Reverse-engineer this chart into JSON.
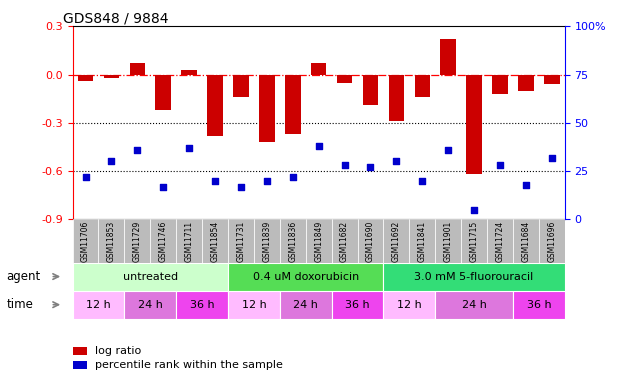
{
  "title": "GDS848 / 9884",
  "samples": [
    "GSM11706",
    "GSM11853",
    "GSM11729",
    "GSM11746",
    "GSM11711",
    "GSM11854",
    "GSM11731",
    "GSM11839",
    "GSM11836",
    "GSM11849",
    "GSM11682",
    "GSM11690",
    "GSM11692",
    "GSM11841",
    "GSM11901",
    "GSM11715",
    "GSM11724",
    "GSM11684",
    "GSM11696"
  ],
  "log_ratio": [
    -0.04,
    -0.02,
    0.07,
    -0.22,
    0.03,
    -0.38,
    -0.14,
    -0.42,
    -0.37,
    0.07,
    -0.05,
    -0.19,
    -0.29,
    -0.14,
    0.22,
    -0.62,
    -0.12,
    -0.1,
    -0.06
  ],
  "percentile": [
    22,
    30,
    36,
    17,
    37,
    20,
    17,
    20,
    22,
    38,
    28,
    27,
    30,
    20,
    36,
    5,
    28,
    18,
    32
  ],
  "agent_groups": [
    {
      "label": "untreated",
      "color": "#ccffcc",
      "start": 0,
      "end": 6
    },
    {
      "label": "0.4 uM doxorubicin",
      "color": "#55dd55",
      "start": 6,
      "end": 12
    },
    {
      "label": "3.0 mM 5-fluorouracil",
      "color": "#33dd77",
      "start": 12,
      "end": 19
    }
  ],
  "time_groups": [
    {
      "label": "12 h",
      "color": "#ffbbff",
      "start": 0,
      "end": 2
    },
    {
      "label": "24 h",
      "color": "#dd77dd",
      "start": 2,
      "end": 4
    },
    {
      "label": "36 h",
      "color": "#ee44ee",
      "start": 4,
      "end": 6
    },
    {
      "label": "12 h",
      "color": "#ffbbff",
      "start": 6,
      "end": 8
    },
    {
      "label": "24 h",
      "color": "#dd77dd",
      "start": 8,
      "end": 10
    },
    {
      "label": "36 h",
      "color": "#ee44ee",
      "start": 10,
      "end": 12
    },
    {
      "label": "12 h",
      "color": "#ffbbff",
      "start": 12,
      "end": 14
    },
    {
      "label": "24 h",
      "color": "#dd77dd",
      "start": 14,
      "end": 17
    },
    {
      "label": "36 h",
      "color": "#ee44ee",
      "start": 17,
      "end": 19
    }
  ],
  "bar_color": "#cc0000",
  "scatter_color": "#0000cc",
  "ylim_left": [
    -0.9,
    0.3
  ],
  "ylim_right": [
    0,
    100
  ],
  "yticks_left": [
    -0.9,
    -0.6,
    -0.3,
    0.0,
    0.3
  ],
  "yticks_right": [
    0,
    25,
    50,
    75,
    100
  ],
  "hline_dashed": 0.0,
  "hlines_dotted": [
    -0.3,
    -0.6
  ],
  "legend_items": [
    {
      "label": "log ratio",
      "color": "#cc0000"
    },
    {
      "label": "percentile rank within the sample",
      "color": "#0000cc"
    }
  ],
  "sample_bg_color": "#bbbbbb",
  "agent_label_color": "#333333",
  "time_label_color": "#333333"
}
